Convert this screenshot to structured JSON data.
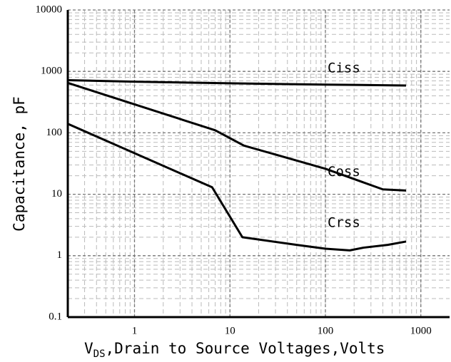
{
  "chart_data": {
    "type": "line",
    "y_label": "Capacitance, pF",
    "x_label": {
      "main": "V",
      "sub": "DS",
      "rest": ",Drain to Source Voltages,Volts"
    },
    "log_x": true,
    "log_y": true,
    "grid": true,
    "minor_grid": true,
    "xlim": [
      0.2,
      2000
    ],
    "ylim": [
      0.1,
      10000
    ],
    "xticks": [
      1,
      10,
      100,
      1000
    ],
    "yticks": [
      0.1,
      1,
      10,
      100,
      1000,
      10000
    ],
    "series": [
      {
        "name": "Ciss",
        "color": "#000000",
        "x": [
          0.2,
          1,
          10,
          100,
          700
        ],
        "values": [
          720,
          680,
          640,
          610,
          590
        ]
      },
      {
        "name": "Coss",
        "color": "#000000",
        "x": [
          0.2,
          7,
          14,
          100,
          400,
          700
        ],
        "values": [
          650,
          110,
          62,
          26,
          12,
          11.5
        ]
      },
      {
        "name": "Crss",
        "color": "#000000",
        "x": [
          0.2,
          6.5,
          13.5,
          50,
          100,
          180,
          250,
          450,
          700
        ],
        "values": [
          140,
          13,
          2,
          1.5,
          1.3,
          1.22,
          1.35,
          1.5,
          1.7
        ]
      }
    ]
  }
}
